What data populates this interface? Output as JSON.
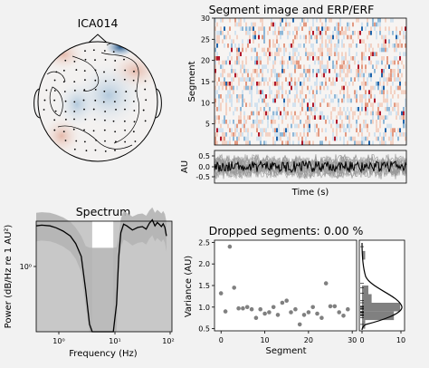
{
  "figure": {
    "topomap": {
      "title": "ICA014"
    },
    "segment_image": {
      "title": "Segment image and ERP/ERF",
      "ylabel": "Segment",
      "yticks": [
        5,
        10,
        15,
        20,
        25,
        30
      ],
      "n_segments": 30
    },
    "erp": {
      "ylabel": "AU",
      "xlabel": "Time (s)",
      "yticks": [
        "0.5",
        "0.0",
        "-0.5"
      ]
    },
    "spectrum": {
      "title": "Spectrum",
      "ylabel": "Power (dB/Hz re 1 AU²)",
      "xlabel": "Frequency (Hz)",
      "xticks": [
        "10⁰",
        "10¹",
        "10²"
      ],
      "yticks": [
        "10⁰"
      ]
    },
    "variance": {
      "title": "Dropped segments: 0.00 %",
      "ylabel": "Variance (AU)",
      "xlabel": "Segment",
      "xticks": [
        "0",
        "10",
        "20",
        "30"
      ],
      "yticks": [
        "0.5",
        "1.0",
        "1.5",
        "2.0",
        "2.5"
      ],
      "hist_xticks": [
        "0",
        "10"
      ]
    }
  },
  "chart_data": [
    {
      "type": "heatmap",
      "title": "Segment image and ERP/ERF",
      "ylabel": "Segment",
      "ylim": [
        0,
        30
      ],
      "colormap": "RdBu_r"
    },
    {
      "type": "line",
      "ylabel": "AU",
      "xlabel": "Time (s)",
      "ylim": [
        -0.8,
        0.8
      ]
    },
    {
      "type": "line",
      "title": "Spectrum",
      "xlabel": "Frequency (Hz)",
      "ylabel": "Power (dB/Hz re 1 AU²)",
      "xscale": "log",
      "xlim": [
        0.4,
        100
      ],
      "x": [
        0.4,
        0.5,
        0.7,
        0.9,
        1.2,
        1.6,
        2.0,
        2.5,
        3.0,
        3.5,
        3.9,
        6.0,
        8.0,
        9.2,
        10.5,
        11.5,
        12.5,
        14,
        16,
        20,
        25,
        30,
        35,
        40,
        45,
        50,
        55,
        60,
        65,
        70,
        75,
        80
      ],
      "y": [
        4.0,
        4.2,
        4.0,
        3.5,
        2.8,
        2.0,
        1.2,
        0.5,
        0.05,
        0.005,
        0.001,
        0.001,
        0.001,
        0.001,
        0.02,
        0.5,
        2.5,
        4.5,
        4.0,
        3.0,
        3.6,
        3.8,
        3.2,
        4.8,
        6.0,
        4.0,
        5.0,
        4.4,
        3.8,
        4.6,
        3.6,
        2.0
      ]
    },
    {
      "type": "scatter",
      "title": "Dropped segments: 0.00 %",
      "xlabel": "Segment",
      "ylabel": "Variance (AU)",
      "xlim": [
        -1.5,
        31
      ],
      "ylim": [
        0.5,
        2.5
      ],
      "x": [
        0,
        1,
        2,
        3,
        4,
        5,
        6,
        7,
        8,
        9,
        10,
        11,
        12,
        13,
        14,
        15,
        16,
        17,
        18,
        19,
        20,
        21,
        22,
        23,
        24,
        25,
        26,
        27,
        28,
        29
      ],
      "y": [
        1.32,
        0.9,
        2.4,
        1.45,
        0.97,
        0.97,
        1.0,
        0.95,
        0.75,
        0.95,
        0.85,
        0.88,
        1.0,
        0.82,
        1.1,
        1.15,
        0.88,
        0.95,
        0.6,
        0.82,
        0.88,
        1.0,
        0.85,
        0.75,
        1.55,
        1.02,
        1.02,
        0.88,
        0.8,
        0.95
      ]
    },
    {
      "type": "bar",
      "orientation": "horizontal",
      "xlabel": "",
      "bin_edges": [
        0.5,
        0.7,
        0.9,
        1.1,
        1.3,
        1.5,
        1.7,
        1.9,
        2.1,
        2.3,
        2.5
      ],
      "values": [
        1,
        10,
        12,
        3,
        2,
        0,
        0,
        0,
        1,
        0
      ]
    }
  ]
}
